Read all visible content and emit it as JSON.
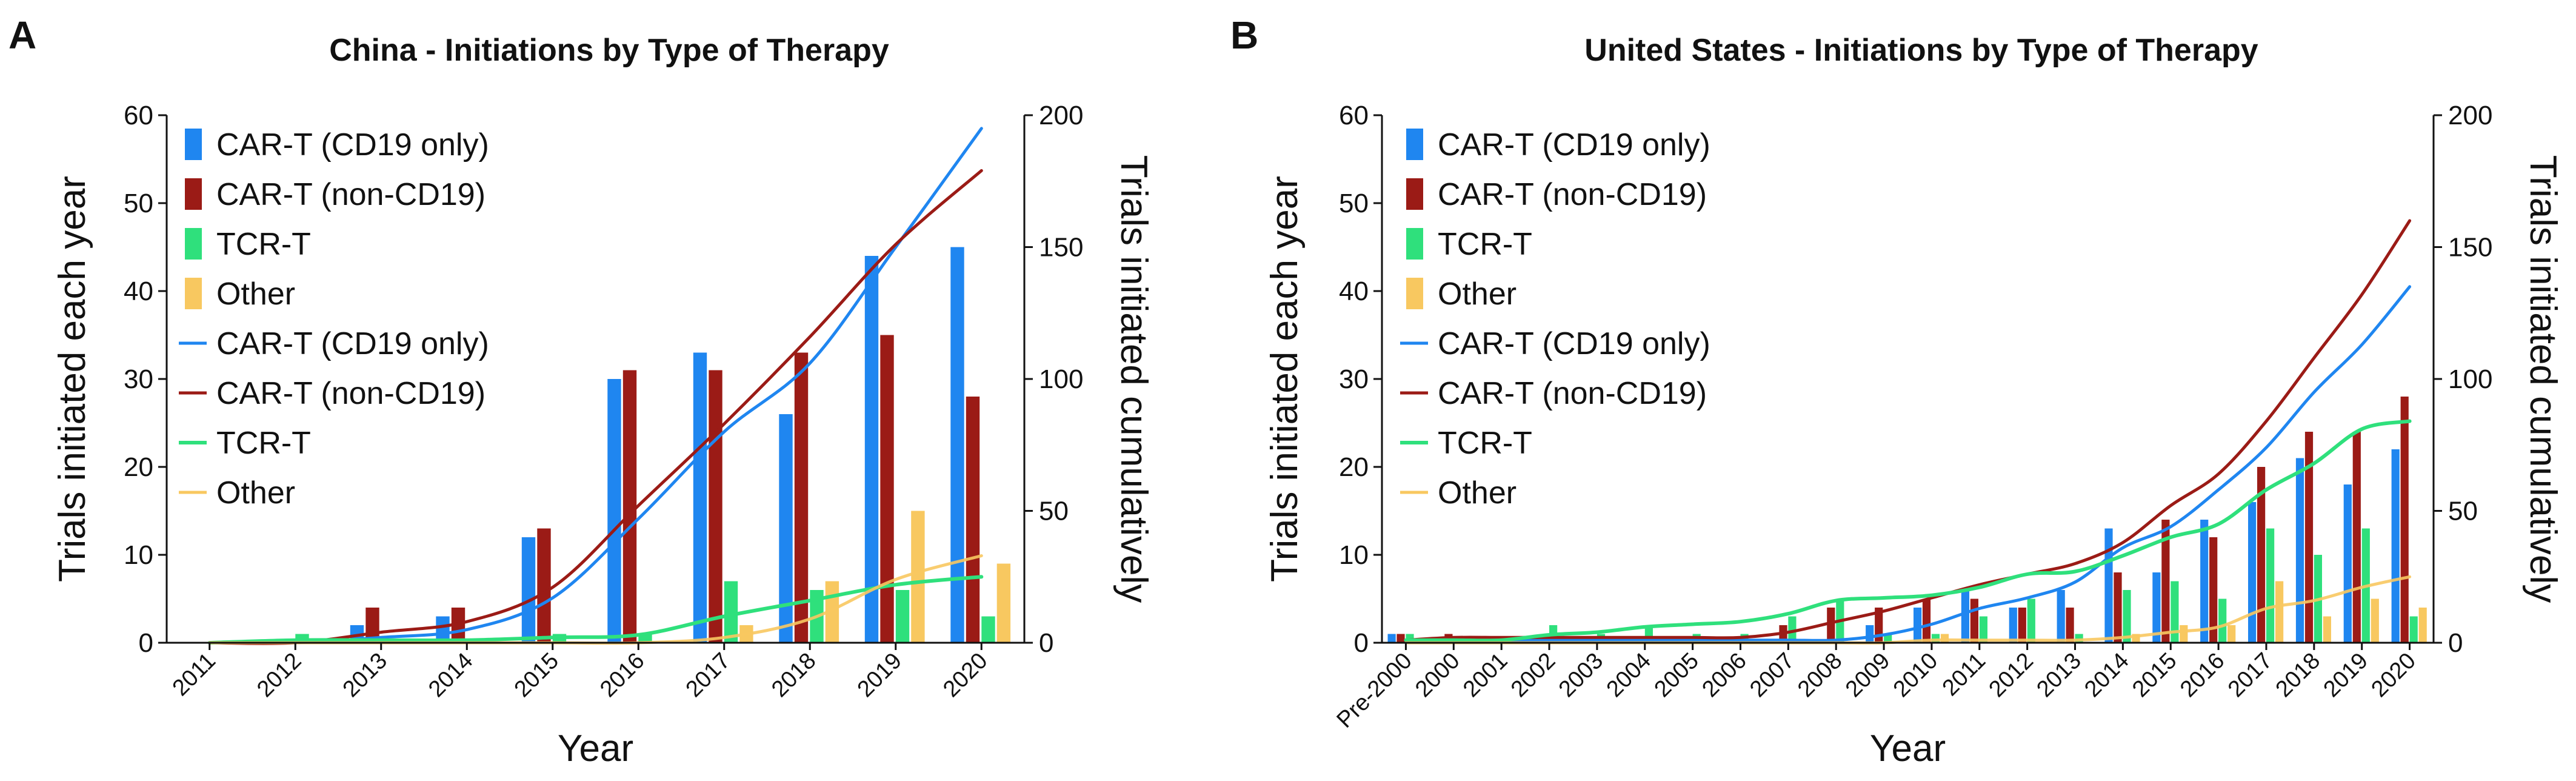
{
  "colors": {
    "cd19": "#1f86f0",
    "noncd19": "#9b1b16",
    "tcr": "#2fe07c",
    "other": "#f8c860"
  },
  "chart_data": [
    {
      "type": "bar",
      "panel_label": "A",
      "title": "China - Initiations by Type of Therapy",
      "xlabel": "Year",
      "ylabel": "Trials initiated each year",
      "y2label": "Trials initiated cumulatively",
      "ylim": [
        0,
        60
      ],
      "y2lim": [
        0,
        200
      ],
      "yticks": [
        "0",
        "10",
        "20",
        "30",
        "40",
        "50",
        "60"
      ],
      "y2ticks": [
        "0",
        "50",
        "100",
        "150",
        "200"
      ],
      "categories": [
        "2011",
        "2012",
        "2013",
        "2014",
        "2015",
        "2016",
        "2017",
        "2018",
        "2019",
        "2020"
      ],
      "legend": [
        "CAR-T (CD19 only)",
        "CAR-T (non-CD19)",
        "TCR-T",
        "Other",
        "CAR-T (CD19 only)",
        "CAR-T (non-CD19)",
        "TCR-T",
        "Other"
      ],
      "series": [
        {
          "name": "CAR-T (CD19 only)",
          "values": [
            0,
            0,
            2,
            3,
            12,
            30,
            33,
            26,
            44,
            45
          ]
        },
        {
          "name": "CAR-T (non-CD19)",
          "values": [
            0,
            0,
            4,
            4,
            13,
            31,
            31,
            33,
            35,
            28
          ]
        },
        {
          "name": "TCR-T",
          "values": [
            0,
            1,
            0,
            0,
            1,
            1,
            7,
            6,
            6,
            3
          ]
        },
        {
          "name": "Other",
          "values": [
            0,
            0,
            0,
            0,
            0,
            0,
            2,
            7,
            15,
            9
          ]
        }
      ],
      "cumulative": [
        {
          "name": "CAR-T (CD19 only)",
          "values": [
            0,
            0,
            2,
            5,
            17,
            47,
            80,
            106,
            150,
            195
          ]
        },
        {
          "name": "CAR-T (non-CD19)",
          "values": [
            0,
            0,
            4,
            8,
            21,
            52,
            83,
            116,
            151,
            179
          ]
        },
        {
          "name": "TCR-T",
          "values": [
            0,
            1,
            1,
            1,
            2,
            3,
            10,
            16,
            22,
            25
          ]
        },
        {
          "name": "Other",
          "values": [
            0,
            0,
            0,
            0,
            0,
            0,
            2,
            9,
            24,
            33
          ]
        }
      ]
    },
    {
      "type": "bar",
      "panel_label": "B",
      "title": "United States - Initiations by Type of Therapy",
      "xlabel": "Year",
      "ylabel": "Trials initiated each year",
      "y2label": "Trials initiated cumulatively",
      "ylim": [
        0,
        60
      ],
      "y2lim": [
        0,
        200
      ],
      "yticks": [
        "0",
        "10",
        "20",
        "30",
        "40",
        "50",
        "60"
      ],
      "y2ticks": [
        "0",
        "50",
        "100",
        "150",
        "200"
      ],
      "categories": [
        "Pre-2000",
        "2000",
        "2001",
        "2002",
        "2003",
        "2004",
        "2005",
        "2006",
        "2007",
        "2008",
        "2009",
        "2010",
        "2011",
        "2012",
        "2013",
        "2014",
        "2015",
        "2016",
        "2017",
        "2018",
        "2019",
        "2020"
      ],
      "legend": [
        "CAR-T (CD19 only)",
        "CAR-T (non-CD19)",
        "TCR-T",
        "Other",
        "CAR-T (CD19 only)",
        "CAR-T (non-CD19)",
        "TCR-T",
        "Other"
      ],
      "series": [
        {
          "name": "CAR-T (CD19 only)",
          "values": [
            1,
            0,
            0,
            0,
            0,
            0,
            0,
            0,
            0,
            0,
            2,
            4,
            6,
            4,
            6,
            13,
            8,
            14,
            16,
            21,
            18,
            22
          ]
        },
        {
          "name": "CAR-T (non-CD19)",
          "values": [
            1,
            1,
            0,
            0,
            0,
            0,
            0,
            0,
            2,
            4,
            4,
            5,
            5,
            4,
            4,
            8,
            14,
            12,
            20,
            24,
            24,
            28
          ]
        },
        {
          "name": "TCR-T",
          "values": [
            1,
            0,
            0,
            2,
            1,
            2,
            1,
            1,
            3,
            5,
            1,
            1,
            3,
            5,
            1,
            6,
            7,
            5,
            13,
            10,
            13,
            3
          ]
        },
        {
          "name": "Other",
          "values": [
            0,
            0,
            0,
            0,
            0,
            0,
            0,
            0,
            0,
            0,
            0,
            1,
            0,
            0,
            0,
            1,
            2,
            2,
            7,
            3,
            5,
            4
          ]
        }
      ],
      "cumulative": [
        {
          "name": "CAR-T (CD19 only)",
          "values": [
            1,
            1,
            1,
            1,
            1,
            1,
            1,
            1,
            1,
            1,
            3,
            7,
            13,
            17,
            23,
            36,
            44,
            58,
            74,
            95,
            113,
            135
          ]
        },
        {
          "name": "CAR-T (non-CD19)",
          "values": [
            1,
            2,
            2,
            2,
            2,
            2,
            2,
            2,
            4,
            8,
            12,
            17,
            22,
            26,
            30,
            38,
            52,
            64,
            84,
            108,
            132,
            160
          ]
        },
        {
          "name": "TCR-T",
          "values": [
            1,
            1,
            1,
            3,
            4,
            6,
            7,
            8,
            11,
            16,
            17,
            18,
            21,
            26,
            27,
            33,
            40,
            45,
            58,
            68,
            81,
            84
          ]
        },
        {
          "name": "Other",
          "values": [
            0,
            0,
            0,
            0,
            0,
            0,
            0,
            0,
            0,
            0,
            0,
            1,
            1,
            1,
            1,
            2,
            4,
            6,
            13,
            16,
            21,
            25
          ]
        }
      ]
    }
  ]
}
